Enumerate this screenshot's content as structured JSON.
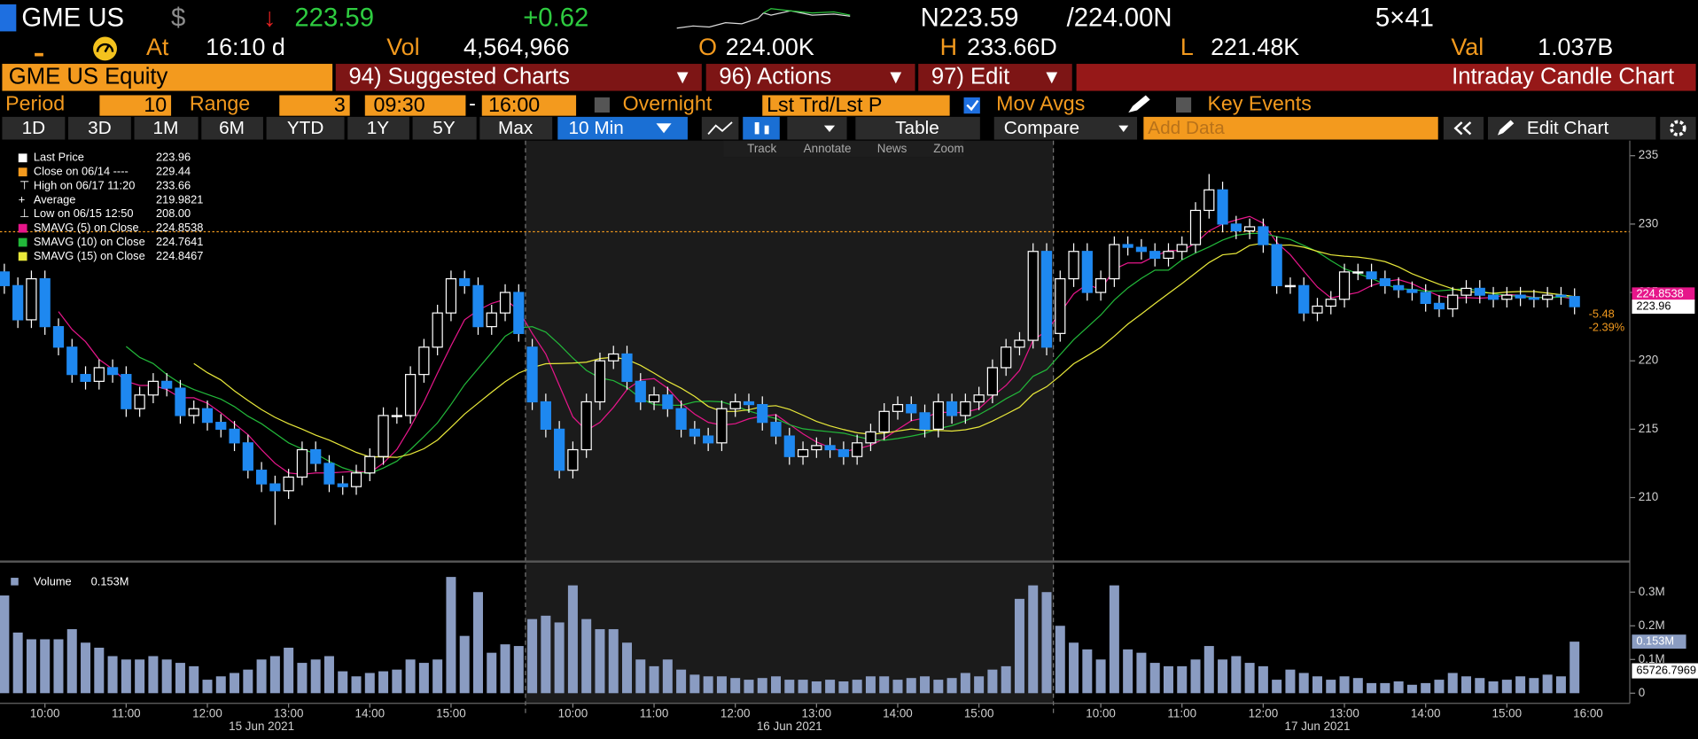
{
  "header": {
    "ticker": "GME US",
    "currency": "$",
    "direction": "↓",
    "last": "223.59",
    "change": "+0.62",
    "bid": "N223.59",
    "ask": "/224.00N",
    "size": "5×41"
  },
  "quote": {
    "at_label": "At",
    "time": "16:10 d",
    "vol_label": "Vol",
    "vol": "4,564,966",
    "open_label": "O",
    "open": "224.00K",
    "high_label": "H",
    "high": "233.66D",
    "low_label": "L",
    "low": "221.48K",
    "val_label": "Val",
    "val": "1.037B"
  },
  "menu": {
    "security": "GME US Equity",
    "items": [
      "94) Suggested Charts",
      "96) Actions",
      "97) Edit"
    ],
    "chart_name": "Intraday Candle Chart"
  },
  "settings": {
    "period_label": "Period",
    "period": "10",
    "range_label": "Range",
    "range": "3",
    "start": "09:30",
    "dash": "-",
    "end": "16:00",
    "overnight": "Overnight",
    "price_field": "Lst Trd/Lst P",
    "mov_avgs": "Mov Avgs",
    "key_events": "Key Events"
  },
  "toolbar": {
    "ranges": [
      "1D",
      "3D",
      "1M",
      "6M",
      "YTD",
      "1Y",
      "5Y",
      "Max"
    ],
    "interval": "10 Min",
    "table": "Table",
    "compare": "Compare",
    "add_data": "Add Data",
    "edit_chart": "Edit Chart"
  },
  "tools": [
    "Track",
    "Annotate",
    "News",
    "Zoom"
  ],
  "chart_data": [
    {
      "type": "candlestick",
      "categories": [
        null,
        null,
        null,
        "10:00",
        null,
        null,
        null,
        null,
        null,
        "11:00",
        null,
        null,
        null,
        null,
        null,
        "12:00",
        null,
        null,
        null,
        null,
        null,
        "13:00",
        null,
        null,
        null,
        null,
        null,
        "14:00",
        null,
        null,
        null,
        null,
        null,
        "15:00",
        null,
        null,
        null,
        null,
        null,
        null,
        null,
        null,
        "10:00",
        null,
        null,
        null,
        null,
        null,
        "11:00",
        null,
        null,
        null,
        null,
        null,
        "12:00",
        null,
        null,
        null,
        null,
        null,
        "13:00",
        null,
        null,
        null,
        null,
        null,
        "14:00",
        null,
        null,
        null,
        null,
        null,
        "15:00",
        null,
        null,
        null,
        null,
        null,
        null,
        null,
        null,
        "10:00",
        null,
        null,
        null,
        null,
        null,
        "11:00",
        null,
        null,
        null,
        null,
        null,
        "12:00",
        null,
        null,
        null,
        null,
        null,
        "13:00",
        null,
        null,
        null,
        null,
        null,
        "14:00",
        null,
        null,
        null,
        null,
        null,
        "15:00",
        null,
        null,
        null,
        null,
        null
      ],
      "x_end_label": "16:00",
      "days": [
        "15 Jun 2021",
        "16 Jun 2021",
        "17 Jun 2021"
      ],
      "open": [
        226.5,
        225.5,
        223,
        226,
        222.5,
        221,
        219,
        218.5,
        219.5,
        219,
        216.5,
        217.5,
        218.5,
        218,
        216,
        216.5,
        215.5,
        215,
        214,
        212,
        211,
        210.5,
        211.5,
        213.5,
        212.5,
        211,
        210.8,
        211.8,
        213,
        216,
        216,
        219,
        221,
        223.5,
        226,
        225.5,
        222.5,
        223.5,
        225,
        221,
        217,
        215,
        212,
        213.5,
        217,
        220,
        220.5,
        218.5,
        217,
        217.5,
        216.5,
        215,
        214.5,
        214,
        216.5,
        217,
        216.8,
        215.5,
        214.5,
        213,
        213.5,
        213.8,
        213.5,
        213,
        214,
        214.8,
        216.3,
        216.8,
        216.2,
        215,
        217,
        216,
        217,
        217.5,
        219.5,
        221,
        221.5,
        228,
        222,
        226,
        228,
        225,
        226,
        228.5,
        228.3,
        228,
        227.5,
        228,
        228.5,
        231,
        232.5,
        230,
        229.5,
        229.8,
        228.5,
        225.5,
        225.5,
        223.5,
        224,
        224.5,
        226.5,
        226.5,
        226,
        225.5,
        225.2,
        225,
        224.2,
        223.8,
        224.8,
        225.3,
        224.8,
        224.5,
        224.8,
        224.6,
        224.5,
        224.8,
        224.7
      ],
      "high": [
        227.1,
        226.1,
        226.6,
        226.6,
        223.1,
        221.6,
        219.6,
        220.1,
        220.1,
        219.6,
        218.1,
        219.1,
        219.1,
        218.6,
        217.1,
        217.1,
        216.1,
        215.6,
        214.6,
        212.6,
        211.6,
        212.1,
        214.1,
        214.1,
        213.1,
        211.6,
        212.4,
        213.6,
        216.6,
        216.6,
        219.6,
        221.6,
        224.1,
        226.6,
        226.6,
        226.1,
        224.1,
        225.6,
        225.6,
        221.6,
        217.6,
        215.6,
        214.1,
        217.6,
        220.6,
        221.1,
        221.1,
        219.1,
        218.1,
        218.1,
        217.1,
        215.6,
        215.1,
        217.1,
        217.6,
        217.6,
        217.4,
        216.1,
        215.1,
        214.1,
        214.4,
        214.4,
        214.1,
        214.6,
        215.4,
        216.9,
        217.4,
        217.4,
        216.8,
        217.6,
        217.6,
        217.6,
        218.1,
        220.1,
        221.6,
        222.1,
        228.6,
        228.6,
        226.6,
        228.6,
        228.6,
        226.6,
        229.1,
        229.1,
        228.9,
        228.6,
        228.6,
        229.1,
        231.6,
        233.66,
        233.1,
        230.6,
        230.4,
        230.4,
        229.1,
        226.1,
        226.1,
        224.6,
        225.1,
        227.1,
        227.1,
        227.1,
        226.6,
        226.1,
        225.8,
        225.6,
        224.8,
        225.4,
        225.9,
        225.9,
        225.4,
        225.4,
        225.4,
        225.2,
        225.4,
        225.4,
        225.3
      ],
      "low": [
        224.9,
        222.4,
        222.4,
        221.9,
        220.4,
        218.4,
        217.9,
        217.9,
        218.4,
        215.9,
        215.9,
        216.9,
        217.4,
        215.4,
        215.4,
        214.9,
        214.4,
        213.4,
        211.4,
        210.4,
        208,
        209.9,
        210.9,
        211.9,
        210.4,
        210.2,
        210.2,
        211.2,
        212.4,
        215.4,
        215.4,
        218.4,
        220.4,
        222.9,
        224.9,
        221.9,
        221.9,
        222.9,
        221.4,
        216.4,
        214.4,
        211.4,
        211.4,
        212.9,
        216.4,
        219.4,
        217.9,
        216.4,
        216.4,
        215.9,
        214.4,
        213.9,
        213.4,
        213.4,
        215.9,
        216.2,
        214.9,
        213.9,
        212.4,
        212.4,
        212.9,
        212.9,
        212.4,
        212.4,
        213.4,
        214.2,
        215.7,
        215.6,
        214.4,
        214.4,
        215.4,
        215.4,
        216.4,
        216.9,
        218.9,
        220.4,
        220.9,
        220.4,
        221.4,
        225.4,
        224.4,
        224.4,
        225.4,
        227.7,
        227.4,
        226.9,
        226.9,
        227.4,
        227.9,
        230.4,
        229.4,
        228.9,
        228.9,
        227.9,
        224.9,
        224.9,
        222.9,
        222.9,
        223.4,
        223.9,
        225.9,
        225.4,
        224.9,
        224.6,
        224.4,
        223.6,
        223.2,
        223.2,
        224.2,
        224.2,
        223.9,
        223.9,
        224,
        223.9,
        223.9,
        224.1,
        223.4
      ],
      "close": [
        225.5,
        223,
        226,
        222.5,
        221,
        219,
        218.5,
        219.5,
        219,
        216.5,
        217.5,
        218.5,
        218,
        216,
        216.5,
        215.5,
        215,
        214,
        212,
        211,
        210.5,
        211.5,
        213.5,
        212.5,
        211,
        210.8,
        211.8,
        213,
        216,
        216,
        219,
        221,
        223.5,
        226,
        225.5,
        222.5,
        223.5,
        225,
        222,
        217,
        215,
        212,
        213.5,
        217,
        220,
        220.5,
        218.5,
        217,
        217.5,
        216.5,
        215,
        214.5,
        214,
        216.5,
        217,
        216.8,
        215.5,
        214.5,
        213,
        213.5,
        213.8,
        213.5,
        213,
        214,
        214.8,
        216.3,
        216.8,
        216.2,
        215,
        217,
        216,
        217,
        217.5,
        219.5,
        221,
        221.5,
        228,
        221,
        226,
        228,
        225,
        226,
        228.5,
        228.3,
        228,
        227.5,
        228,
        228.5,
        231,
        232.5,
        230,
        229.5,
        229.8,
        228.5,
        225.5,
        225.5,
        223.5,
        224,
        224.5,
        226.5,
        226.5,
        226,
        225.5,
        225.2,
        225,
        224.2,
        223.8,
        224.8,
        225.3,
        224.8,
        224.5,
        224.8,
        224.6,
        224.5,
        224.8,
        224.7,
        223.96
      ],
      "color_up": "#000000",
      "color_down": "#1e88f0",
      "wick_color": "#ffffff",
      "ylim": [
        205.4,
        236.1
      ],
      "yticks": [
        210,
        215,
        220,
        225,
        230,
        235
      ],
      "legend": [
        {
          "name": "Last Price",
          "value": 223.96,
          "color": "#ffffff"
        },
        {
          "name": "Close on 06/14 ----",
          "value": 229.44,
          "color": "#f39a1e"
        },
        {
          "name": "High on 06/17 11:20",
          "value": 233.66
        },
        {
          "name": "Average",
          "value": 219.9821
        },
        {
          "name": "Low on 06/15 12:50",
          "value": 208,
          "value_label": "208.00"
        },
        {
          "name": "SMAVG (5)  on Close",
          "value": 224.8538,
          "color": "#e6168a",
          "period": 5
        },
        {
          "name": "SMAVG (10)  on Close",
          "value": 224.7641,
          "color": "#22b83a",
          "period": 10
        },
        {
          "name": "SMAVG (15)  on Close",
          "value": 224.8467,
          "color": "#e8e83a",
          "period": 15
        }
      ],
      "change": "-5.48",
      "change_pct": "-2.39%"
    },
    {
      "type": "bar",
      "name": "Volume",
      "last_label": "0.153M",
      "average_label": "65726.7969",
      "color": "#8a9cc2",
      "values": [
        0.29,
        0.18,
        0.16,
        0.16,
        0.16,
        0.19,
        0.15,
        0.135,
        0.11,
        0.1,
        0.1,
        0.11,
        0.1,
        0.09,
        0.08,
        0.04,
        0.05,
        0.06,
        0.07,
        0.1,
        0.11,
        0.135,
        0.09,
        0.1,
        0.11,
        0.065,
        0.05,
        0.06,
        0.065,
        0.07,
        0.1,
        0.09,
        0.1,
        0.345,
        0.17,
        0.3,
        0.12,
        0.145,
        0.14,
        0.22,
        0.23,
        0.21,
        0.32,
        0.22,
        0.19,
        0.19,
        0.15,
        0.1,
        0.08,
        0.1,
        0.07,
        0.055,
        0.05,
        0.05,
        0.045,
        0.04,
        0.045,
        0.05,
        0.04,
        0.04,
        0.035,
        0.04,
        0.035,
        0.04,
        0.05,
        0.05,
        0.04,
        0.045,
        0.05,
        0.04,
        0.045,
        0.06,
        0.05,
        0.07,
        0.08,
        0.28,
        0.32,
        0.3,
        0.2,
        0.15,
        0.13,
        0.1,
        0.32,
        0.13,
        0.12,
        0.09,
        0.08,
        0.08,
        0.1,
        0.14,
        0.1,
        0.11,
        0.09,
        0.08,
        0.04,
        0.07,
        0.06,
        0.05,
        0.04,
        0.05,
        0.045,
        0.03,
        0.03,
        0.035,
        0.025,
        0.03,
        0.04,
        0.06,
        0.05,
        0.045,
        0.035,
        0.04,
        0.05,
        0.045,
        0.055,
        0.05,
        0.153
      ],
      "ylim": [
        -0.03,
        0.365
      ],
      "yticks": [
        0,
        {
          "value": 0.1,
          "label": "0.1M"
        },
        {
          "value": 0.2,
          "label": "0.2M"
        },
        {
          "value": 0.3,
          "label": "0.3M"
        }
      ]
    }
  ]
}
